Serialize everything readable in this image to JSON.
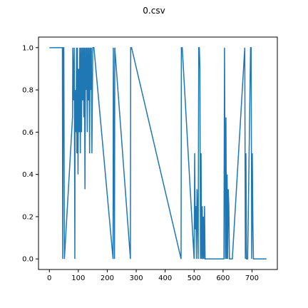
{
  "chart_data": {
    "type": "line",
    "title": "0.csv",
    "xlabel": "",
    "ylabel": "",
    "xlim": [
      -37.5,
      787.5
    ],
    "ylim": [
      -0.05,
      1.05
    ],
    "xticks": [
      0,
      100,
      200,
      300,
      400,
      500,
      600,
      700
    ],
    "yticks": [
      0.0,
      0.2,
      0.4,
      0.6,
      0.8,
      1.0
    ],
    "ytick_labels": [
      "0.0",
      "0.2",
      "0.4",
      "0.6",
      "0.8",
      "1.0"
    ],
    "grid": false,
    "legend": "none",
    "color": "#1f77b4",
    "series": [
      {
        "x": [
          0,
          45,
          46,
          48,
          50,
          52,
          80,
          81,
          84,
          86,
          88,
          89,
          92,
          94,
          95,
          97,
          99,
          101,
          103,
          105,
          107,
          109,
          111,
          113,
          115,
          117,
          119,
          121,
          123,
          125,
          127,
          129,
          131,
          133,
          135,
          137,
          139,
          141,
          143,
          145,
          147,
          150,
          151,
          154,
          220,
          221,
          225,
          226,
          280,
          281,
          283,
          284,
          455,
          456,
          458,
          459,
          500,
          502,
          504,
          506,
          508,
          510,
          512,
          514,
          516,
          518,
          520,
          522,
          524,
          526,
          528,
          530,
          532,
          534,
          536,
          538,
          540,
          542,
          544,
          546,
          548,
          550,
          552,
          554,
          556,
          558,
          560,
          562,
          565,
          603,
          605,
          608,
          610,
          612,
          614,
          616,
          618,
          620,
          622,
          624,
          626,
          628,
          630,
          632,
          675,
          677,
          679,
          681,
          683,
          685,
          695,
          697,
          699,
          701,
          703,
          705,
          707,
          750
        ],
        "y": [
          1.0,
          1.0,
          0.0,
          1.0,
          1.0,
          0.0,
          0.67,
          1.0,
          0.75,
          1.0,
          0.0,
          0.8,
          0.6,
          1.0,
          0.5,
          1.0,
          0.4,
          0.9,
          0.6,
          1.0,
          0.5,
          1.0,
          0.6,
          1.0,
          0.75,
          1.0,
          0.67,
          1.0,
          0.33,
          1.0,
          0.8,
          1.0,
          0.6,
          1.0,
          0.75,
          1.0,
          0.5,
          1.0,
          0.8,
          1.0,
          0.5,
          1.0,
          1.0,
          1.0,
          0.0,
          1.0,
          0.0,
          1.0,
          0.0,
          1.0,
          1.0,
          1.0,
          0.0,
          1.0,
          1.0,
          1.0,
          0.0,
          0.5,
          0.14,
          0.25,
          0.0,
          0.33,
          0.2,
          0.0,
          1.0,
          1.0,
          0.9,
          0.0,
          0.5,
          0.0,
          0.25,
          0.0,
          0.2,
          0.0,
          0.25,
          0.0,
          0.0,
          0.0,
          0.0,
          0.0,
          0.0,
          0.0,
          0.0,
          0.0,
          0.0,
          0.0,
          0.0,
          0.0,
          0.0,
          0.0,
          1.0,
          0.0,
          0.67,
          0.0,
          0.4,
          0.0,
          0.33,
          0.25,
          0.0,
          0.0,
          0.0,
          0.0,
          0.0,
          0.0,
          1.0,
          0.0,
          0.5,
          0.0,
          0.0,
          0.0,
          1.0,
          1.0,
          0.0,
          0.5,
          0.17,
          0.0,
          0.0,
          0.0
        ]
      }
    ]
  }
}
